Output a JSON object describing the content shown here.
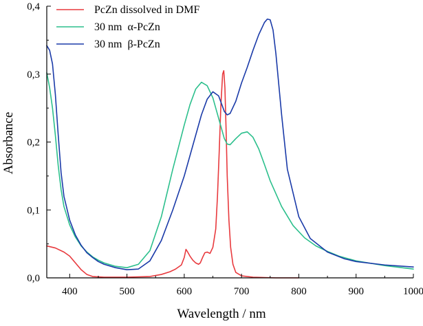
{
  "chart_data": {
    "type": "line",
    "title": "",
    "xlabel": "Wavelength / nm",
    "ylabel": "Absorbance",
    "xlim": [
      360,
      1000
    ],
    "ylim": [
      0,
      0.4
    ],
    "grid": false,
    "legend_position": "top-left",
    "x_ticks": [
      400,
      500,
      600,
      700,
      800,
      900,
      1000
    ],
    "x_tick_labels": [
      "400",
      "500",
      "600",
      "700",
      "800",
      "900",
      "1000"
    ],
    "y_ticks": [
      0,
      0.1,
      0.2,
      0.3,
      0.4
    ],
    "y_tick_labels": [
      "0,0",
      "0,1",
      "0,2",
      "0,3",
      "0,4"
    ],
    "series": [
      {
        "name": "PcZn dissolved in DMF",
        "color": "#e8393d",
        "x": [
          360,
          375,
          390,
          400,
          410,
          420,
          430,
          440,
          460,
          500,
          540,
          560,
          575,
          585,
          595,
          600,
          603,
          606,
          610,
          615,
          620,
          625,
          628,
          632,
          636,
          640,
          645,
          650,
          655,
          658,
          661,
          664,
          667,
          669,
          671,
          673,
          675,
          678,
          681,
          685,
          690,
          700,
          720,
          760,
          800
        ],
        "y": [
          0.047,
          0.044,
          0.038,
          0.032,
          0.022,
          0.012,
          0.005,
          0.002,
          0.001,
          0.001,
          0.002,
          0.005,
          0.009,
          0.013,
          0.019,
          0.03,
          0.042,
          0.038,
          0.032,
          0.026,
          0.022,
          0.02,
          0.022,
          0.03,
          0.037,
          0.038,
          0.036,
          0.045,
          0.072,
          0.12,
          0.185,
          0.255,
          0.3,
          0.305,
          0.28,
          0.22,
          0.15,
          0.085,
          0.045,
          0.02,
          0.008,
          0.003,
          0.001,
          0.0,
          0.0
        ]
      },
      {
        "name": "30 nm  α-PcZn",
        "color": "#2bbf8c",
        "x": [
          360,
          365,
          370,
          375,
          380,
          385,
          390,
          400,
          410,
          420,
          430,
          440,
          450,
          460,
          480,
          500,
          520,
          540,
          560,
          580,
          600,
          610,
          620,
          630,
          640,
          650,
          660,
          670,
          675,
          680,
          690,
          700,
          710,
          720,
          730,
          740,
          750,
          770,
          790,
          810,
          830,
          850,
          870,
          900,
          950,
          1000
        ],
        "y": [
          0.302,
          0.28,
          0.25,
          0.21,
          0.165,
          0.13,
          0.105,
          0.078,
          0.06,
          0.047,
          0.038,
          0.031,
          0.026,
          0.022,
          0.017,
          0.015,
          0.02,
          0.04,
          0.09,
          0.16,
          0.225,
          0.255,
          0.278,
          0.288,
          0.283,
          0.265,
          0.235,
          0.205,
          0.197,
          0.196,
          0.205,
          0.213,
          0.215,
          0.207,
          0.19,
          0.167,
          0.143,
          0.105,
          0.077,
          0.059,
          0.047,
          0.039,
          0.032,
          0.025,
          0.018,
          0.013
        ]
      },
      {
        "name": "30 nm  β-PcZn",
        "color": "#1a3aa8",
        "x": [
          360,
          365,
          370,
          375,
          380,
          385,
          390,
          400,
          410,
          420,
          430,
          440,
          450,
          460,
          480,
          500,
          520,
          540,
          560,
          580,
          600,
          620,
          630,
          640,
          650,
          660,
          670,
          675,
          680,
          690,
          700,
          710,
          720,
          730,
          740,
          745,
          750,
          755,
          760,
          770,
          780,
          800,
          820,
          850,
          880,
          900,
          950,
          1000
        ],
        "y": [
          0.342,
          0.335,
          0.315,
          0.27,
          0.21,
          0.155,
          0.12,
          0.085,
          0.063,
          0.048,
          0.037,
          0.03,
          0.024,
          0.02,
          0.015,
          0.012,
          0.013,
          0.025,
          0.055,
          0.1,
          0.15,
          0.21,
          0.24,
          0.263,
          0.274,
          0.268,
          0.245,
          0.24,
          0.242,
          0.26,
          0.287,
          0.31,
          0.335,
          0.358,
          0.376,
          0.381,
          0.38,
          0.365,
          0.33,
          0.24,
          0.16,
          0.09,
          0.058,
          0.038,
          0.028,
          0.024,
          0.019,
          0.016
        ]
      }
    ]
  }
}
